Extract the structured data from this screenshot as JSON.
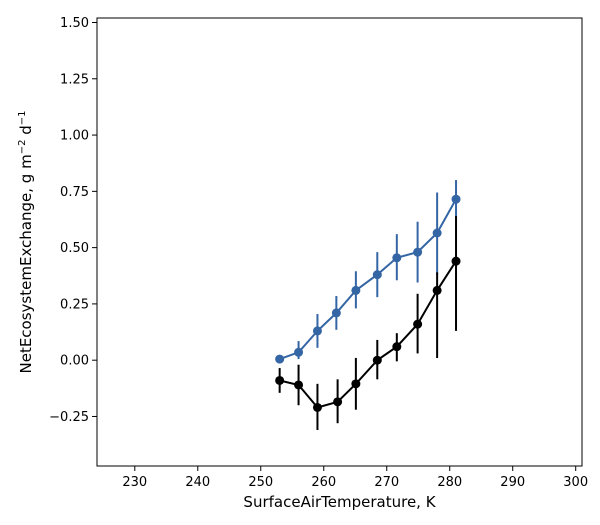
{
  "chart_data": {
    "type": "line",
    "title": "",
    "xlabel": "SurfaceAirTemperature,  K",
    "ylabel_parts": [
      "NetEcosystemExchange,  g m",
      "−2",
      " d",
      "−1"
    ],
    "xlim": [
      224,
      301
    ],
    "ylim": [
      -0.47,
      1.52
    ],
    "xticks": [
      230,
      240,
      250,
      260,
      270,
      280,
      290,
      300
    ],
    "yticks": [
      -0.25,
      0.0,
      0.25,
      0.5,
      0.75,
      1.0,
      1.25,
      1.5
    ],
    "ytick_labels": [
      "−0.25",
      "0.00",
      "0.25",
      "0.50",
      "0.75",
      "1.00",
      "1.25",
      "1.50"
    ],
    "grid": false,
    "series": [
      {
        "color": "#3465a4",
        "x": [
          253,
          256,
          259,
          262,
          265.1,
          268.5,
          271.6,
          274.9,
          278,
          281
        ],
        "y": [
          0.005,
          0.035,
          0.13,
          0.21,
          0.31,
          0.38,
          0.455,
          0.48,
          0.565,
          0.715
        ],
        "err_low": [
          0.0,
          0.005,
          0.055,
          0.135,
          0.23,
          0.28,
          0.355,
          0.345,
          0.38,
          0.63
        ],
        "err_high": [
          0.01,
          0.085,
          0.205,
          0.285,
          0.395,
          0.48,
          0.56,
          0.615,
          0.745,
          0.8
        ]
      },
      {
        "color": "#000000",
        "x": [
          253,
          256,
          259,
          262.2,
          265.1,
          268.5,
          271.6,
          274.9,
          278,
          281
        ],
        "y": [
          -0.09,
          -0.11,
          -0.21,
          -0.185,
          -0.105,
          0.0,
          0.06,
          0.16,
          0.31,
          0.44
        ],
        "err_low": [
          -0.145,
          -0.2,
          -0.31,
          -0.28,
          -0.22,
          -0.085,
          -0.005,
          0.03,
          0.01,
          0.13
        ],
        "err_high": [
          -0.035,
          -0.02,
          -0.105,
          -0.085,
          0.01,
          0.09,
          0.12,
          0.295,
          0.39,
          0.64
        ]
      }
    ]
  }
}
